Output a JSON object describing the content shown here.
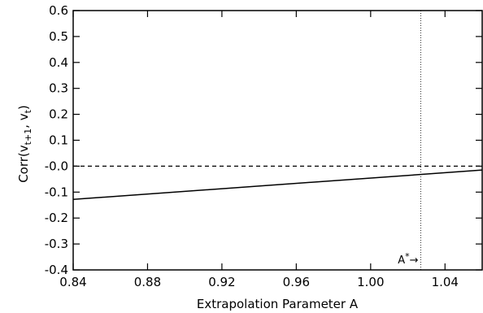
{
  "chart_data": {
    "type": "line",
    "xlabel": "Extrapolation Parameter A",
    "ylabel": {
      "prefix": "Corr(v",
      "sub1": "t+1",
      "mid": ", v",
      "sub2": "t",
      "suffix": ")"
    },
    "xlim": [
      0.84,
      1.06
    ],
    "ylim": [
      -0.4,
      0.6
    ],
    "x_ticks": [
      0.84,
      0.88,
      0.92,
      0.96,
      1.0,
      1.04
    ],
    "x_tick_labels": [
      "0.84",
      "0.88",
      "0.92",
      "0.96",
      "1.00",
      "1.04"
    ],
    "y_ticks": [
      -0.4,
      -0.3,
      -0.2,
      -0.1,
      0.0,
      0.1,
      0.2,
      0.3,
      0.4,
      0.5,
      0.6
    ],
    "y_tick_labels": [
      "-0.4",
      "-0.3",
      "-0.2",
      "-0.1",
      "-0.0",
      "0.1",
      "0.2",
      "0.3",
      "0.4",
      "0.5",
      "0.6"
    ],
    "grid": false,
    "series": [
      {
        "style": "solid",
        "x": [
          0.84,
          1.06
        ],
        "y": [
          -0.128,
          -0.015
        ]
      }
    ],
    "reference_lines": [
      {
        "orientation": "horizontal",
        "value": 0.0,
        "style": "dashed"
      },
      {
        "orientation": "vertical",
        "value": 1.027,
        "style": "dotted"
      }
    ],
    "annotations": [
      {
        "base": "A",
        "sup": "*",
        "arrow": "→",
        "x": 1.027,
        "y": -0.375
      }
    ]
  }
}
